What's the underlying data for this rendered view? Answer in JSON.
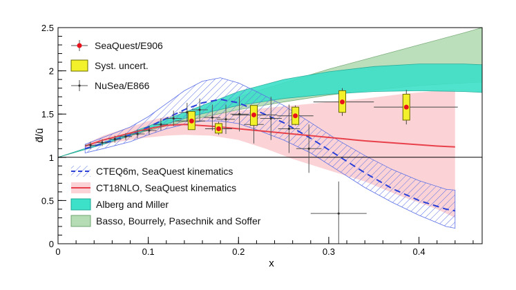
{
  "chart_data": {
    "type": "scatter",
    "xlabel": "x",
    "ylabel": "d̄/ū",
    "xlim": [
      0,
      0.47
    ],
    "ylim": [
      0,
      2.5
    ],
    "x_ticks": [
      "0",
      "0.1",
      "0.2",
      "0.3",
      "0.4"
    ],
    "y_ticks": [
      "0",
      "0.5",
      "1",
      "1.5",
      "2",
      "2.5"
    ],
    "reference_line_y": 1,
    "legend_top": [
      {
        "label": "SeaQuest/E906",
        "symbol": "marker"
      },
      {
        "label": "Syst. uncert.",
        "symbol": "box"
      },
      {
        "label": "NuSea/E866",
        "symbol": "small-marker"
      }
    ],
    "legend_bottom": [
      {
        "label": "CTEQ6m, SeaQuest kinematics",
        "symbol": "dashed-hatch"
      },
      {
        "label": "CT18NLO, SeaQuest kinematics",
        "symbol": "red-line"
      },
      {
        "label": "Alberg and Miller",
        "symbol": "cyan-fill"
      },
      {
        "label": "Basso, Bourrely, Pasechnik and Soffer",
        "symbol": "green-fill"
      }
    ],
    "series": [
      {
        "name": "SeaQuest/E906",
        "points": [
          {
            "x": 0.148,
            "y": 1.42,
            "xlo": 0.13,
            "xhi": 0.163,
            "ylo": 1.33,
            "yhi": 1.52,
            "slo": 1.32,
            "shi": 1.53
          },
          {
            "x": 0.178,
            "y": 1.33,
            "xlo": 0.163,
            "xhi": 0.193,
            "ylo": 1.26,
            "yhi": 1.41,
            "slo": 1.28,
            "shi": 1.39
          },
          {
            "x": 0.217,
            "y": 1.49,
            "xlo": 0.193,
            "xhi": 0.243,
            "ylo": 1.38,
            "yhi": 1.6,
            "slo": 1.37,
            "shi": 1.6
          },
          {
            "x": 0.263,
            "y": 1.48,
            "xlo": 0.243,
            "xhi": 0.283,
            "ylo": 1.37,
            "yhi": 1.6,
            "slo": 1.38,
            "shi": 1.58
          },
          {
            "x": 0.315,
            "y": 1.64,
            "xlo": 0.283,
            "xhi": 0.35,
            "ylo": 1.48,
            "yhi": 1.8,
            "slo": 1.52,
            "shi": 1.77
          },
          {
            "x": 0.386,
            "y": 1.58,
            "xlo": 0.35,
            "xhi": 0.443,
            "ylo": 1.38,
            "yhi": 1.78,
            "slo": 1.43,
            "shi": 1.73
          }
        ]
      },
      {
        "name": "NuSea/E866",
        "points": [
          {
            "x": 0.036,
            "y": 1.14,
            "xlo": 0.03,
            "xhi": 0.042,
            "ylo": 1.1,
            "yhi": 1.18
          },
          {
            "x": 0.049,
            "y": 1.17,
            "xlo": 0.043,
            "xhi": 0.055,
            "ylo": 1.13,
            "yhi": 1.21
          },
          {
            "x": 0.063,
            "y": 1.21,
            "xlo": 0.056,
            "xhi": 0.07,
            "ylo": 1.17,
            "yhi": 1.25
          },
          {
            "x": 0.075,
            "y": 1.24,
            "xlo": 0.068,
            "xhi": 0.082,
            "ylo": 1.2,
            "yhi": 1.28
          },
          {
            "x": 0.088,
            "y": 1.27,
            "xlo": 0.08,
            "xhi": 0.096,
            "ylo": 1.22,
            "yhi": 1.32
          },
          {
            "x": 0.101,
            "y": 1.31,
            "xlo": 0.093,
            "xhi": 0.109,
            "ylo": 1.26,
            "yhi": 1.36
          },
          {
            "x": 0.114,
            "y": 1.38,
            "xlo": 0.106,
            "xhi": 0.122,
            "ylo": 1.31,
            "yhi": 1.45
          },
          {
            "x": 0.128,
            "y": 1.45,
            "xlo": 0.119,
            "xhi": 0.137,
            "ylo": 1.36,
            "yhi": 1.54
          },
          {
            "x": 0.143,
            "y": 1.52,
            "xlo": 0.134,
            "xhi": 0.152,
            "ylo": 1.41,
            "yhi": 1.63
          },
          {
            "x": 0.157,
            "y": 1.55,
            "xlo": 0.148,
            "xhi": 0.166,
            "ylo": 1.42,
            "yhi": 1.68
          },
          {
            "x": 0.171,
            "y": 1.46,
            "xlo": 0.162,
            "xhi": 0.18,
            "ylo": 1.31,
            "yhi": 1.61
          },
          {
            "x": 0.186,
            "y": 1.44,
            "xlo": 0.176,
            "xhi": 0.196,
            "ylo": 1.27,
            "yhi": 1.61
          },
          {
            "x": 0.201,
            "y": 1.5,
            "xlo": 0.191,
            "xhi": 0.211,
            "ylo": 1.3,
            "yhi": 1.7
          },
          {
            "x": 0.217,
            "y": 1.38,
            "xlo": 0.206,
            "xhi": 0.228,
            "ylo": 1.16,
            "yhi": 1.6
          },
          {
            "x": 0.236,
            "y": 1.45,
            "xlo": 0.224,
            "xhi": 0.248,
            "ylo": 1.2,
            "yhi": 1.7
          },
          {
            "x": 0.256,
            "y": 1.33,
            "xlo": 0.244,
            "xhi": 0.268,
            "ylo": 1.05,
            "yhi": 1.61
          },
          {
            "x": 0.278,
            "y": 1.1,
            "xlo": 0.264,
            "xhi": 0.292,
            "ylo": 0.82,
            "yhi": 1.38
          },
          {
            "x": 0.311,
            "y": 0.35,
            "xlo": 0.28,
            "xhi": 0.342,
            "ylo": 0.0,
            "yhi": 0.72
          }
        ]
      },
      {
        "name": "CTEQ6m, SeaQuest kinematics",
        "x": [
          0.03,
          0.05,
          0.08,
          0.1,
          0.12,
          0.14,
          0.16,
          0.18,
          0.2,
          0.22,
          0.25,
          0.28,
          0.31,
          0.34,
          0.37,
          0.4,
          0.43,
          0.44
        ],
        "lower": [
          1.05,
          1.1,
          1.18,
          1.26,
          1.33,
          1.38,
          1.42,
          1.42,
          1.39,
          1.32,
          1.2,
          1.05,
          0.85,
          0.65,
          0.48,
          0.33,
          0.2,
          0.18
        ],
        "central": [
          1.1,
          1.16,
          1.26,
          1.35,
          1.45,
          1.55,
          1.63,
          1.67,
          1.63,
          1.54,
          1.4,
          1.22,
          1.02,
          0.82,
          0.64,
          0.5,
          0.4,
          0.38
        ],
        "upper": [
          1.15,
          1.23,
          1.35,
          1.47,
          1.62,
          1.77,
          1.88,
          1.92,
          1.86,
          1.76,
          1.6,
          1.4,
          1.2,
          1.02,
          0.86,
          0.73,
          0.63,
          0.62
        ]
      },
      {
        "name": "CT18NLO, SeaQuest kinematics",
        "x": [
          0.03,
          0.05,
          0.08,
          0.1,
          0.12,
          0.14,
          0.17,
          0.2,
          0.23,
          0.26,
          0.3,
          0.34,
          0.38,
          0.42,
          0.44
        ],
        "lower": [
          1.1,
          1.15,
          1.2,
          1.23,
          1.25,
          1.26,
          1.25,
          1.2,
          1.1,
          0.98,
          0.85,
          0.72,
          0.55,
          0.4,
          0.3
        ],
        "central": [
          1.13,
          1.2,
          1.28,
          1.33,
          1.37,
          1.38,
          1.36,
          1.33,
          1.3,
          1.27,
          1.23,
          1.19,
          1.16,
          1.13,
          1.12
        ],
        "upper": [
          1.15,
          1.25,
          1.35,
          1.42,
          1.47,
          1.5,
          1.52,
          1.54,
          1.57,
          1.6,
          1.64,
          1.68,
          1.73,
          1.77,
          1.79
        ]
      },
      {
        "name": "Alberg and Miller",
        "x": [
          0.0,
          0.05,
          0.1,
          0.15,
          0.2,
          0.25,
          0.3,
          0.35,
          0.4,
          0.45,
          0.47
        ],
        "lower": [
          1.0,
          1.15,
          1.32,
          1.48,
          1.6,
          1.68,
          1.73,
          1.76,
          1.77,
          1.76,
          1.75
        ],
        "upper": [
          1.0,
          1.17,
          1.36,
          1.56,
          1.76,
          1.9,
          1.99,
          2.05,
          2.08,
          2.08,
          2.07
        ]
      },
      {
        "name": "Basso, Bourrely, Pasechnik and Soffer",
        "x": [
          0.0,
          0.05,
          0.1,
          0.15,
          0.2,
          0.25,
          0.3,
          0.35,
          0.4,
          0.45,
          0.47
        ],
        "lower": [
          1.0,
          1.15,
          1.31,
          1.44,
          1.55,
          1.64,
          1.72,
          1.78,
          1.83,
          1.86,
          1.87
        ],
        "upper": [
          1.0,
          1.15,
          1.34,
          1.52,
          1.7,
          1.86,
          2.02,
          2.16,
          2.3,
          2.44,
          2.5
        ]
      }
    ],
    "colors": {
      "seaquest_marker": "#e8101a",
      "syst_box_fill": "#f3f22a",
      "syst_box_edge": "#6a6a00",
      "nusea": "#555555",
      "cteq_hatch": "#5a6ee6",
      "ct18_fill": "#fbd3d6",
      "ct18_line": "#e8404a",
      "alberg_fill": "#3de0c8",
      "basso_fill": "#b5dcb4"
    }
  }
}
